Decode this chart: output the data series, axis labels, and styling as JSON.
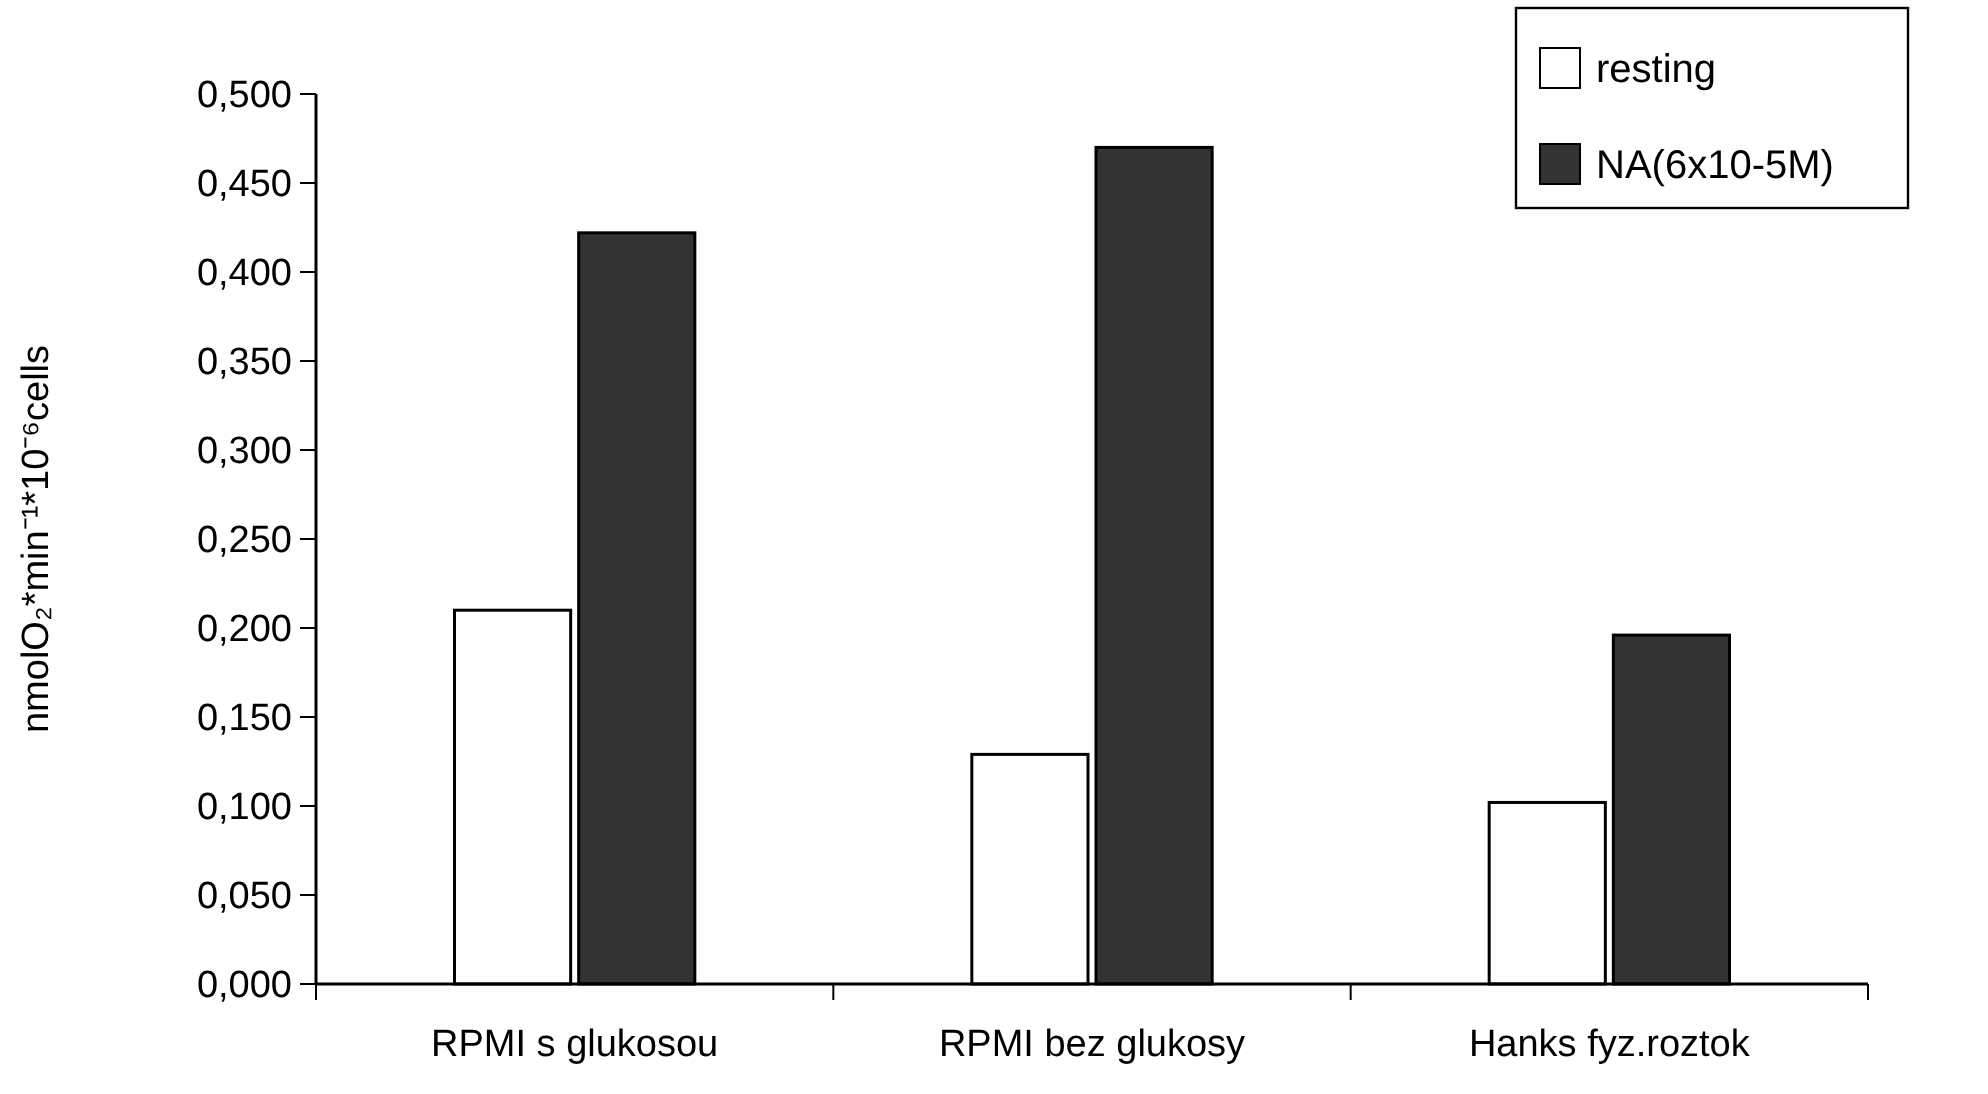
{
  "chart_data": {
    "type": "bar",
    "ylabel": "nmolO₂*min⁻¹*10⁻⁶cells",
    "categories": [
      "RPMI s glukosou",
      "RPMI bez glukosy",
      "Hanks fyz.roztok"
    ],
    "series": [
      {
        "name": "resting",
        "color": "#ffffff",
        "values": [
          0.21,
          0.129,
          0.102
        ]
      },
      {
        "name": "NA(6x10-5M)",
        "color": "#333333",
        "values": [
          0.422,
          0.47,
          0.196
        ]
      }
    ],
    "ylim": [
      0,
      0.5
    ],
    "yticks": [
      {
        "value": 0,
        "label": "0,000"
      },
      {
        "value": 0.05,
        "label": "0,050"
      },
      {
        "value": 0.1,
        "label": "0,100"
      },
      {
        "value": 0.15,
        "label": "0,150"
      },
      {
        "value": 0.2,
        "label": "0,200"
      },
      {
        "value": 0.25,
        "label": "0,250"
      },
      {
        "value": 0.3,
        "label": "0,300"
      },
      {
        "value": 0.35,
        "label": "0,350"
      },
      {
        "value": 0.4,
        "label": "0,400"
      },
      {
        "value": 0.45,
        "label": "0,450"
      },
      {
        "value": 0.5,
        "label": "0,500"
      }
    ],
    "grid": false,
    "legend": "top right"
  }
}
